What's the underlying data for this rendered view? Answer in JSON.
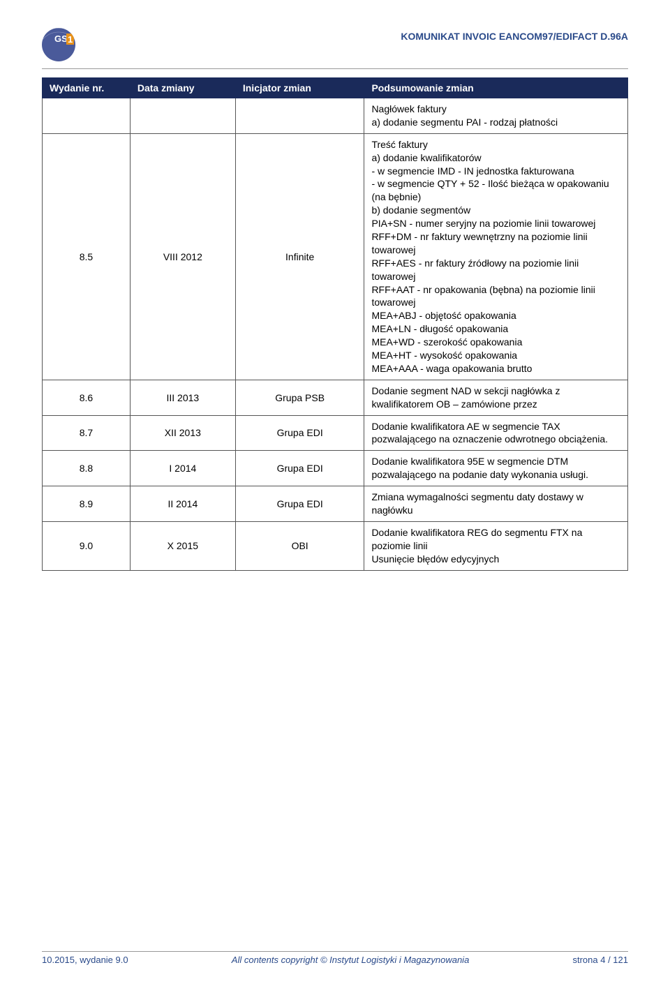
{
  "header": {
    "doc_title": "KOMUNIKAT INVOIC EANCOM97/EDIFACT D.96A"
  },
  "table": {
    "columns": {
      "c1": "Wydanie nr.",
      "c2": "Data zmiany",
      "c3": "Inicjator zmian",
      "c4": "Podsumowanie zmian"
    },
    "rows": [
      {
        "nr": "",
        "date": "",
        "initiator": "",
        "summary_lines": [
          "Nagłówek faktury",
          "a) dodanie segmentu PAI - rodzaj płatności"
        ]
      },
      {
        "nr": "8.5",
        "date": "VIII 2012",
        "initiator": "Infinite",
        "summary_lines": [
          "Treść faktury",
          "a) dodanie kwalifikatorów",
          "- w segmencie IMD - IN jednostka fakturowana",
          "- w segmencie QTY + 52 - Ilość bieżąca w opakowaniu (na bębnie)",
          "b) dodanie segmentów",
          "PIA+SN - numer seryjny na poziomie linii towarowej",
          "RFF+DM - nr faktury wewnętrzny na poziomie linii towarowej",
          "RFF+AES - nr faktury źródłowy na poziomie linii towarowej",
          "RFF+AAT - nr opakowania (bębna) na poziomie linii towarowej",
          "MEA+ABJ - objętość opakowania",
          "MEA+LN - długość  opakowania",
          "MEA+WD - szerokość  opakowania",
          "MEA+HT - wysokość  opakowania",
          "MEA+AAA - waga opakowania brutto"
        ]
      },
      {
        "nr": "8.6",
        "date": "III 2013",
        "initiator": "Grupa PSB",
        "summary_lines": [
          "Dodanie segment NAD w sekcji nagłówka z kwalifikatorem OB – zamówione przez"
        ]
      },
      {
        "nr": "8.7",
        "date": "XII 2013",
        "initiator": "Grupa EDI",
        "summary_lines": [
          "Dodanie kwalifikatora AE w segmencie TAX pozwalającego na oznaczenie odwrotnego obciążenia."
        ]
      },
      {
        "nr": "8.8",
        "date": "I 2014",
        "initiator": "Grupa EDI",
        "summary_lines": [
          "Dodanie kwalifikatora 95E w segmencie DTM pozwalającego na podanie daty wykonania usługi."
        ]
      },
      {
        "nr": "8.9",
        "date": "II 2014",
        "initiator": "Grupa EDI",
        "summary_lines": [
          "Zmiana wymagalności segmentu daty dostawy w nagłówku"
        ]
      },
      {
        "nr": "9.0",
        "date": "X 2015",
        "initiator": "OBI",
        "summary_lines": [
          "Dodanie kwalifikatora REG do segmentu FTX na poziomie linii",
          "Usunięcie błędów edycyjnych"
        ]
      }
    ]
  },
  "footer": {
    "left": "10.2015, wydanie 9.0",
    "center": "All contents copyright © Instytut Logistyki i Magazynowania",
    "right": "strona 4 / 121"
  },
  "colors": {
    "header_text": "#2a4a8a",
    "th_bg": "#1a2a5a",
    "th_text": "#ffffff",
    "border": "#555555",
    "footer_text": "#2a4a8a"
  }
}
